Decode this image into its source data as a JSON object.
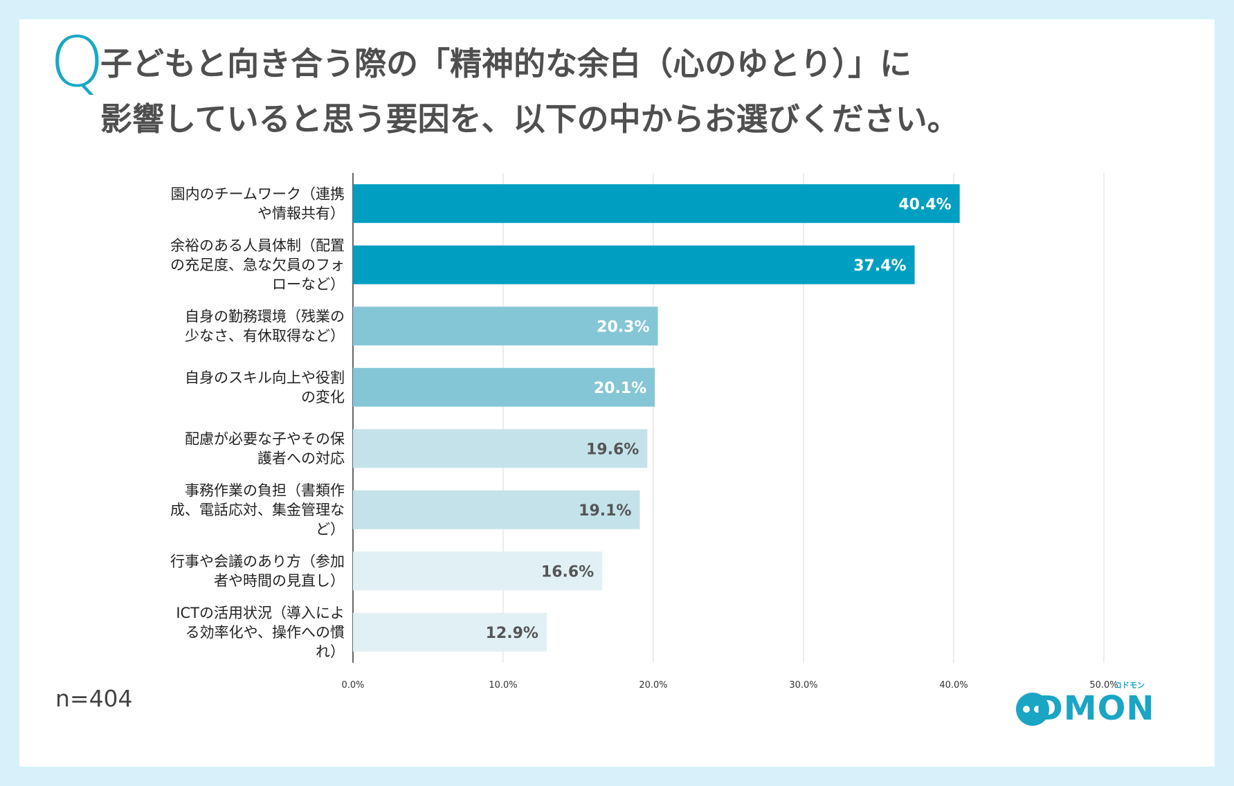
{
  "question": {
    "mark": "Q",
    "line1": "子どもと向き合う際の「精神的な余白（心のゆとり）」に",
    "line2": "影響していると思う要因を、以下の中からお選びください。"
  },
  "sample": "n=404",
  "logo": {
    "text": "DMON",
    "sub": "コドモン"
  },
  "colors": {
    "background": "#d6f1f9",
    "bar_top": "#009fc1",
    "bar_mid": "#85c6d6",
    "bar_low": "#c4e2ea",
    "bar_lowest": "#e1f0f5",
    "accent": "#18a8c4"
  },
  "chart_data": {
    "type": "bar",
    "orientation": "horizontal",
    "title": "",
    "xlabel": "",
    "ylabel": "",
    "xlim": [
      0,
      50
    ],
    "ticks": [
      "0.0%",
      "10.0%",
      "20.0%",
      "30.0%",
      "40.0%",
      "50.0%"
    ],
    "grid": true,
    "categories": [
      [
        "園内のチームワーク（連携",
        "や情報共有）"
      ],
      [
        "余裕のある人員体制（配置",
        "の充足度、急な欠員のフォ",
        "ローなど）"
      ],
      [
        "自身の勤務環境（残業の",
        "少なさ、有休取得など）"
      ],
      [
        "自身のスキル向上や役割",
        "の変化"
      ],
      [
        "配慮が必要な子やその保",
        "護者への対応"
      ],
      [
        "事務作業の負担（書類作",
        "成、電話応対、集金管理な",
        "ど）"
      ],
      [
        "行事や会議のあり方（参加",
        "者や時間の見直し）"
      ],
      [
        "ICTの活用状況（導入によ",
        "る効率化や、操作への慣",
        "れ）"
      ]
    ],
    "values": [
      40.4,
      37.4,
      20.3,
      20.1,
      19.6,
      19.1,
      16.6,
      12.9
    ],
    "value_labels": [
      "40.4%",
      "37.4%",
      "20.3%",
      "20.1%",
      "19.6%",
      "19.1%",
      "16.6%",
      "12.9%"
    ],
    "bar_colors": [
      "#009fc1",
      "#009fc1",
      "#85c6d6",
      "#85c6d6",
      "#c4e2ea",
      "#c4e2ea",
      "#e1f0f5",
      "#e1f0f5"
    ],
    "label_colors": [
      "#ffffff",
      "#ffffff",
      "#ffffff",
      "#ffffff",
      "#555555",
      "#555555",
      "#555555",
      "#555555"
    ]
  }
}
